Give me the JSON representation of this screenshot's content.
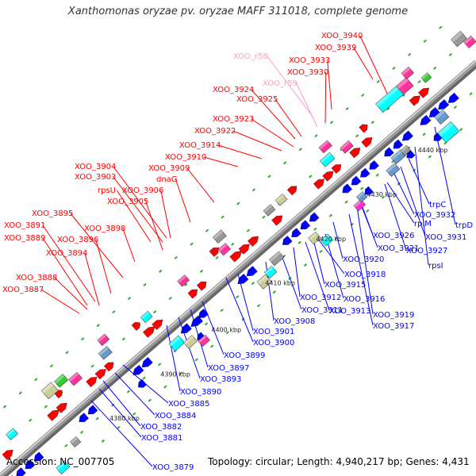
{
  "title": "Xanthomonas oryzae pv. oryzae MAFF 311018, complete genome",
  "footer": {
    "accession": "Accession: NC_007705",
    "summary": "Topology: circular; Length: 4,940,217 bp; Genes: 4,431"
  },
  "kbp_ticks": [
    "4380 kbp",
    "4390 kbp",
    "4400 kbp",
    "4410 kbp",
    "4420 kbp",
    "4430 kbp",
    "4440 kbp"
  ],
  "upper_labels": [
    {
      "name": "XOO_3940",
      "type": "cds"
    },
    {
      "name": "XOO_3939",
      "type": "cds"
    },
    {
      "name": "XOO_r58",
      "type": "rna"
    },
    {
      "name": "XOO_3933",
      "type": "cds"
    },
    {
      "name": "XOO_3930",
      "type": "cds"
    },
    {
      "name": "XOO_r59",
      "type": "rna"
    },
    {
      "name": "XOO_3924",
      "type": "cds"
    },
    {
      "name": "XOO_3925",
      "type": "cds"
    },
    {
      "name": "XOO_3923",
      "type": "cds"
    },
    {
      "name": "XOO_3922",
      "type": "cds"
    },
    {
      "name": "XOO_3914",
      "type": "cds"
    },
    {
      "name": "XOO_3910",
      "type": "cds"
    },
    {
      "name": "XOO_3904",
      "type": "cds"
    },
    {
      "name": "XOO_3909",
      "type": "cds"
    },
    {
      "name": "XOO_3903",
      "type": "cds"
    },
    {
      "name": "dnaG",
      "type": "cds"
    },
    {
      "name": "rpsU",
      "type": "cds"
    },
    {
      "name": "XOO_3906",
      "type": "cds"
    },
    {
      "name": "XOO_3905",
      "type": "cds"
    },
    {
      "name": "XOO_3895",
      "type": "cds"
    },
    {
      "name": "XOO_3898",
      "type": "cds"
    },
    {
      "name": "XOO_3891",
      "type": "cds"
    },
    {
      "name": "XOO_3889",
      "type": "cds"
    },
    {
      "name": "XOO_3896",
      "type": "cds"
    },
    {
      "name": "XOO_3894",
      "type": "cds"
    },
    {
      "name": "XOO_3888",
      "type": "cds"
    },
    {
      "name": "XOO_3887",
      "type": "cds"
    }
  ],
  "lower_labels": [
    "trpC",
    "XOO_3932",
    "trpD",
    "rplM",
    "XOO_3931",
    "XOO_3926",
    "XOO_3927",
    "XOO_3921",
    "XOO_3920",
    "rpsI",
    "XOO_3918",
    "XOO_3915",
    "XOO_3912",
    "XOO_3916",
    "XOO_3911",
    "XOO_3913",
    "XOO_3919",
    "XOO_3908",
    "XOO_3917",
    "XOO_3901",
    "XOO_3900",
    "XOO_3899",
    "XOO_3897",
    "XOO_3893",
    "XOO_3890",
    "XOO_3885",
    "XOO_3884",
    "XOO_3882",
    "XOO_3881",
    "XOO_3879"
  ],
  "colors": {
    "forward": "#ff0000",
    "reverse": "#0000ff",
    "rna": "#ff99cc",
    "backbone": "#999999",
    "pink": "#ff3399",
    "cyan": "#00ffff",
    "olive": "#cccc99",
    "steel": "#6699cc",
    "gray": "#999999",
    "green": "#33cc33",
    "magenta": "#ff33cc"
  }
}
